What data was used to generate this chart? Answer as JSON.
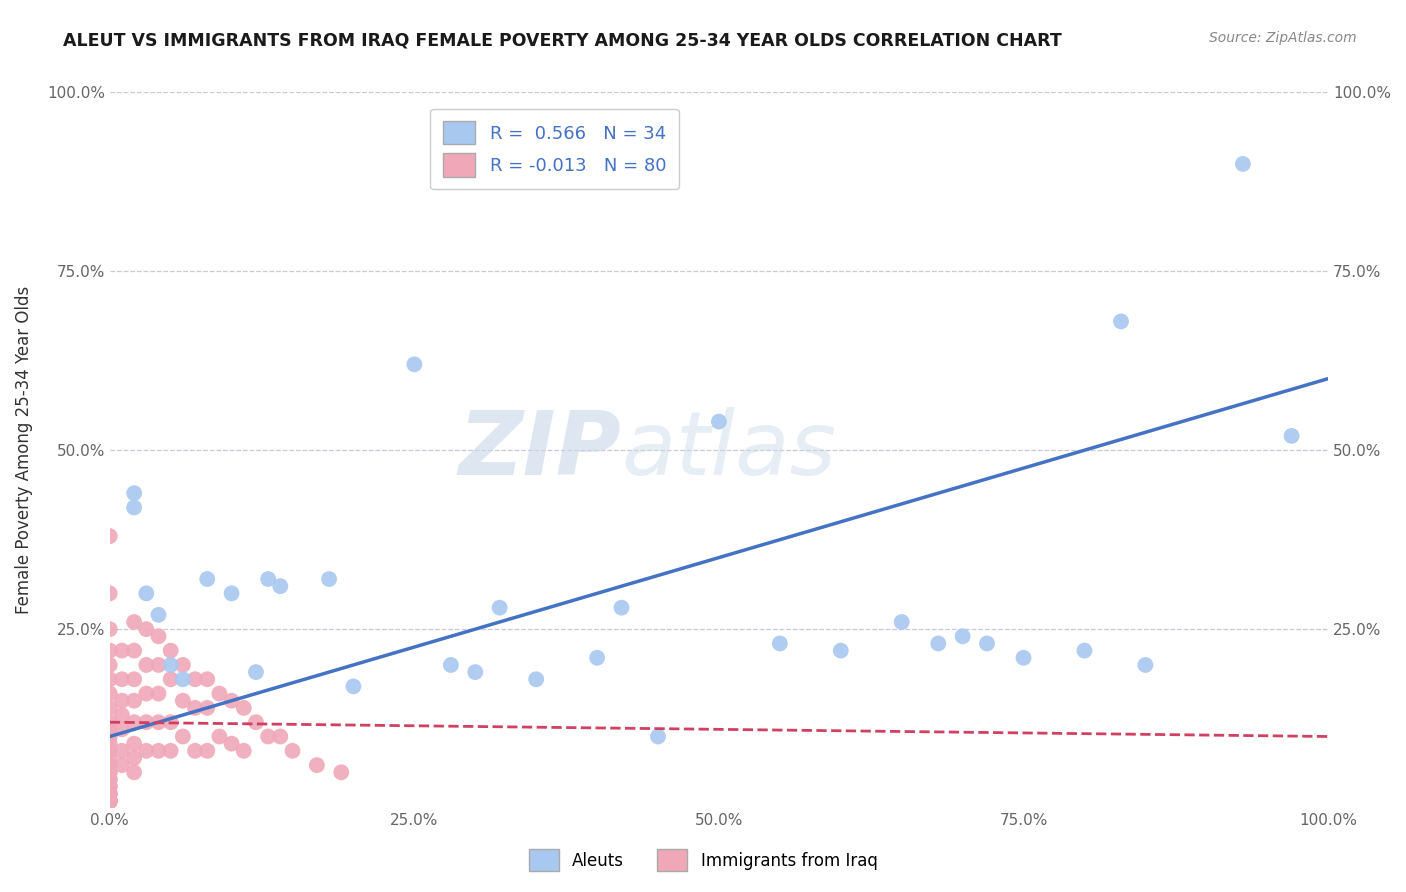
{
  "title": "ALEUT VS IMMIGRANTS FROM IRAQ FEMALE POVERTY AMONG 25-34 YEAR OLDS CORRELATION CHART",
  "source": "Source: ZipAtlas.com",
  "ylabel": "Female Poverty Among 25-34 Year Olds",
  "xlim": [
    0,
    1.0
  ],
  "ylim": [
    0,
    1.0
  ],
  "xticks": [
    0.0,
    0.25,
    0.5,
    0.75,
    1.0
  ],
  "xticklabels": [
    "0.0%",
    "25.0%",
    "50.0%",
    "75.0%",
    "100.0%"
  ],
  "yticks": [
    0.25,
    0.5,
    0.75,
    1.0
  ],
  "yticklabels": [
    "25.0%",
    "50.0%",
    "75.0%",
    "100.0%"
  ],
  "right_yticks": [
    0.25,
    0.5,
    0.75,
    1.0
  ],
  "right_yticklabels": [
    "25.0%",
    "50.0%",
    "75.0%",
    "100.0%"
  ],
  "aleut_R": 0.566,
  "aleut_N": 34,
  "iraq_R": -0.013,
  "iraq_N": 80,
  "aleut_color": "#a8c8f0",
  "iraq_color": "#f0a8b8",
  "aleut_line_color": "#4472c4",
  "iraq_line_color": "#d04060",
  "watermark_zip": "ZIP",
  "watermark_atlas": "atlas",
  "background_color": "#ffffff",
  "grid_color": "#c8c8d8",
  "aleut_x": [
    0.02,
    0.02,
    0.03,
    0.04,
    0.05,
    0.06,
    0.08,
    0.1,
    0.12,
    0.13,
    0.14,
    0.18,
    0.2,
    0.25,
    0.28,
    0.3,
    0.32,
    0.35,
    0.4,
    0.42,
    0.45,
    0.5,
    0.55,
    0.6,
    0.65,
    0.68,
    0.7,
    0.72,
    0.75,
    0.8,
    0.83,
    0.85,
    0.93,
    0.97
  ],
  "aleut_y": [
    0.44,
    0.42,
    0.3,
    0.27,
    0.2,
    0.18,
    0.32,
    0.3,
    0.19,
    0.32,
    0.31,
    0.32,
    0.17,
    0.62,
    0.2,
    0.19,
    0.28,
    0.18,
    0.21,
    0.28,
    0.1,
    0.54,
    0.23,
    0.22,
    0.26,
    0.23,
    0.24,
    0.23,
    0.21,
    0.22,
    0.68,
    0.2,
    0.9,
    0.52
  ],
  "iraq_x": [
    0.0,
    0.0,
    0.0,
    0.0,
    0.0,
    0.0,
    0.0,
    0.0,
    0.0,
    0.0,
    0.0,
    0.0,
    0.0,
    0.0,
    0.0,
    0.0,
    0.0,
    0.0,
    0.0,
    0.0,
    0.0,
    0.0,
    0.0,
    0.0,
    0.0,
    0.0,
    0.0,
    0.0,
    0.0,
    0.0,
    0.01,
    0.01,
    0.01,
    0.01,
    0.01,
    0.01,
    0.01,
    0.02,
    0.02,
    0.02,
    0.02,
    0.02,
    0.02,
    0.02,
    0.02,
    0.03,
    0.03,
    0.03,
    0.03,
    0.03,
    0.04,
    0.04,
    0.04,
    0.04,
    0.04,
    0.05,
    0.05,
    0.05,
    0.05,
    0.06,
    0.06,
    0.06,
    0.07,
    0.07,
    0.07,
    0.08,
    0.08,
    0.08,
    0.09,
    0.09,
    0.1,
    0.1,
    0.11,
    0.11,
    0.12,
    0.13,
    0.14,
    0.15,
    0.17,
    0.19
  ],
  "iraq_y": [
    0.38,
    0.3,
    0.25,
    0.22,
    0.2,
    0.18,
    0.16,
    0.14,
    0.12,
    0.11,
    0.1,
    0.09,
    0.08,
    0.07,
    0.06,
    0.05,
    0.05,
    0.04,
    0.04,
    0.03,
    0.03,
    0.02,
    0.02,
    0.02,
    0.01,
    0.01,
    0.01,
    0.01,
    0.01,
    0.01,
    0.22,
    0.18,
    0.15,
    0.13,
    0.11,
    0.08,
    0.06,
    0.26,
    0.22,
    0.18,
    0.15,
    0.12,
    0.09,
    0.07,
    0.05,
    0.25,
    0.2,
    0.16,
    0.12,
    0.08,
    0.24,
    0.2,
    0.16,
    0.12,
    0.08,
    0.22,
    0.18,
    0.12,
    0.08,
    0.2,
    0.15,
    0.1,
    0.18,
    0.14,
    0.08,
    0.18,
    0.14,
    0.08,
    0.16,
    0.1,
    0.15,
    0.09,
    0.14,
    0.08,
    0.12,
    0.1,
    0.1,
    0.08,
    0.06,
    0.05
  ],
  "aleut_line_x": [
    0.0,
    1.0
  ],
  "aleut_line_y": [
    0.1,
    0.6
  ],
  "iraq_line_x": [
    0.0,
    1.0
  ],
  "iraq_line_y": [
    0.12,
    0.1
  ]
}
